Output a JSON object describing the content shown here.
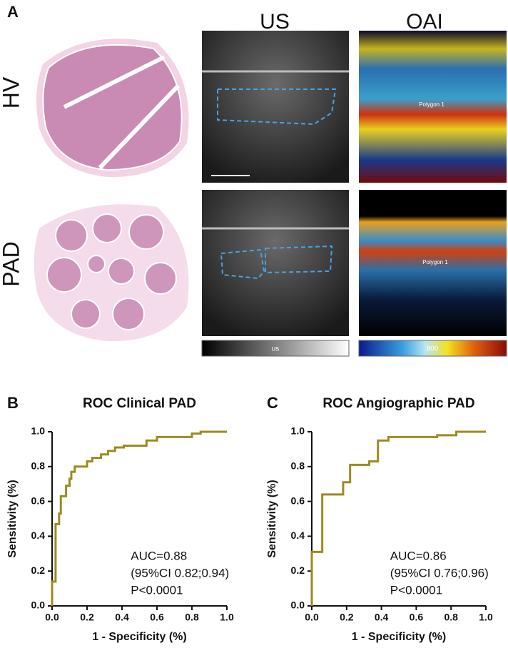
{
  "panel_a": {
    "label": "A",
    "columns": [
      "US",
      "OAI"
    ],
    "rows": [
      "HV",
      "PAD"
    ],
    "roi_labels": [
      "Polygon 1",
      "Polygon 1"
    ],
    "colorbar_labels": [
      "us",
      "800"
    ]
  },
  "chart_data": [
    {
      "type": "line",
      "panel_label": "B",
      "title": "ROC Clinical PAD",
      "xlabel": "1 - Specificity (%)",
      "ylabel": "Sensitivity (%)",
      "annotations": [
        "AUC=0.88",
        "(95%CI 0.82;0.94)",
        "P<0.0001"
      ],
      "xlim": [
        0,
        1
      ],
      "ylim": [
        0,
        1
      ],
      "xticks": [
        {
          "value": 0,
          "label": "0.0"
        },
        0.2,
        0.4,
        0.6,
        0.8,
        {
          "value": 1,
          "label": "1.0"
        }
      ],
      "yticks": [
        {
          "value": 0,
          "label": "0.0"
        },
        0.2,
        0.4,
        0.6,
        0.8,
        {
          "value": 1,
          "label": "1.0"
        }
      ],
      "series": [
        {
          "color": "#9c8b1f",
          "x": [
            0,
            0,
            0.02,
            0.02,
            0.04,
            0.04,
            0.05,
            0.05,
            0.08,
            0.08,
            0.1,
            0.1,
            0.11,
            0.11,
            0.13,
            0.13,
            0.2,
            0.2,
            0.23,
            0.23,
            0.28,
            0.28,
            0.32,
            0.32,
            0.36,
            0.36,
            0.41,
            0.41,
            0.54,
            0.54,
            0.6,
            0.6,
            0.8,
            0.8,
            0.85,
            0.85,
            1
          ],
          "values": [
            0,
            0.14,
            0.14,
            0.47,
            0.47,
            0.53,
            0.53,
            0.63,
            0.63,
            0.69,
            0.69,
            0.73,
            0.73,
            0.77,
            0.77,
            0.8,
            0.8,
            0.83,
            0.83,
            0.85,
            0.85,
            0.87,
            0.87,
            0.89,
            0.89,
            0.91,
            0.91,
            0.92,
            0.92,
            0.95,
            0.95,
            0.97,
            0.97,
            0.99,
            0.99,
            1,
            1
          ]
        }
      ]
    },
    {
      "type": "line",
      "panel_label": "C",
      "title": "ROC Angiographic PAD",
      "xlabel": "1 - Specificity (%)",
      "ylabel": "Sensitivity (%)",
      "annotations": [
        "AUC=0.86",
        "(95%CI 0.76;0.96)",
        "P<0.0001"
      ],
      "xlim": [
        0,
        1
      ],
      "ylim": [
        0,
        1
      ],
      "xticks": [
        {
          "value": 0,
          "label": "0.0"
        },
        0.2,
        0.4,
        0.6,
        0.8,
        {
          "value": 1,
          "label": "1.0"
        }
      ],
      "yticks": [
        {
          "value": 0,
          "label": "0.0"
        },
        0.2,
        0.4,
        0.6,
        0.8,
        {
          "value": 1,
          "label": "1.0"
        }
      ],
      "series": [
        {
          "color": "#9c8b1f",
          "x": [
            0,
            0,
            0.06,
            0.06,
            0.18,
            0.18,
            0.22,
            0.22,
            0.33,
            0.33,
            0.38,
            0.38,
            0.44,
            0.44,
            0.72,
            0.72,
            0.83,
            0.83,
            1
          ],
          "values": [
            0,
            0.31,
            0.31,
            0.64,
            0.64,
            0.71,
            0.71,
            0.81,
            0.81,
            0.83,
            0.83,
            0.95,
            0.95,
            0.97,
            0.97,
            0.98,
            0.98,
            1,
            1
          ]
        }
      ]
    }
  ]
}
